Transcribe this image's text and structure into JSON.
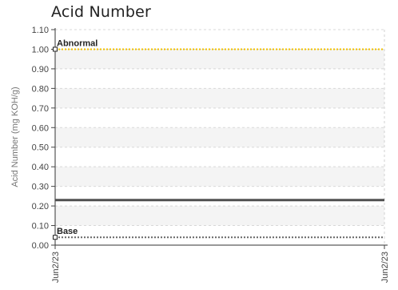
{
  "chart_data": {
    "type": "line",
    "title": "Acid Number",
    "ylabel": "Acid Number (mg KOH/g)",
    "xlabel": "",
    "ylim": [
      0,
      1.1
    ],
    "y_ticks": [
      "0.00",
      "0.10",
      "0.20",
      "0.30",
      "0.40",
      "0.50",
      "0.60",
      "0.70",
      "0.80",
      "0.90",
      "1.00",
      "1.10"
    ],
    "x_tick_labels": [
      "Jun2/23",
      "Jun2/23"
    ],
    "grid": true,
    "series": [
      {
        "value": 0.23,
        "color": "#505050",
        "style": "solid"
      }
    ],
    "thresholds": [
      {
        "label": "Abnormal",
        "value": 1.0,
        "color": "#f2c200",
        "style": "dotted"
      },
      {
        "label": "Base",
        "value": 0.04,
        "color": "#666666",
        "style": "dotted"
      }
    ],
    "band_color": "#f4f4f4"
  }
}
